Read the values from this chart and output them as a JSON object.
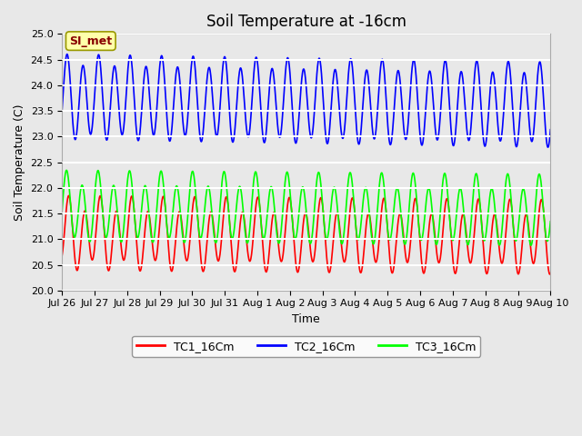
{
  "title": "Soil Temperature at -16cm",
  "xlabel": "Time",
  "ylabel": "Soil Temperature (C)",
  "ylim": [
    20.0,
    25.0
  ],
  "yticks": [
    20.0,
    20.5,
    21.0,
    21.5,
    22.0,
    22.5,
    23.0,
    23.5,
    24.0,
    24.5,
    25.0
  ],
  "bg_color": "#e8e8e8",
  "plot_bg_color": "#e8e8e8",
  "grid_color": "white",
  "annotation_text": "SI_met",
  "annotation_bg": "#ffffaa",
  "annotation_fg": "#880000",
  "tc1_color": "red",
  "tc2_color": "blue",
  "tc3_color": "lime",
  "tc1_label": "TC1_16Cm",
  "tc2_label": "TC2_16Cm",
  "tc3_label": "TC3_16Cm",
  "line_width": 1.2,
  "num_days": 15.5,
  "points_per_day": 96,
  "tc1_base": 21.1,
  "tc1_amp": 0.6,
  "tc1_amp2": 0.18,
  "tc1_phase": 1.2,
  "tc1_phase2": 0.8,
  "tc2_base": 23.75,
  "tc2_amp": 0.75,
  "tc2_amp2": 0.12,
  "tc2_phase": 0.5,
  "tc2_phase2": 1.0,
  "tc3_base": 21.6,
  "tc3_amp": 0.6,
  "tc3_amp2": 0.15,
  "tc3_phase": 0.2,
  "tc3_phase2": 0.4,
  "xtick_labels": [
    "Jul 26",
    "Jul 27",
    "Jul 28",
    "Jul 29",
    "Jul 30",
    "Jul 31",
    "Aug 1",
    "Aug 2",
    "Aug 3",
    "Aug 4",
    "Aug 5",
    "Aug 6",
    "Aug 7",
    "Aug 8",
    "Aug 9",
    "Aug 10"
  ],
  "num_xticks": 16,
  "title_fontsize": 12,
  "axis_label_fontsize": 9,
  "tick_fontsize": 8
}
